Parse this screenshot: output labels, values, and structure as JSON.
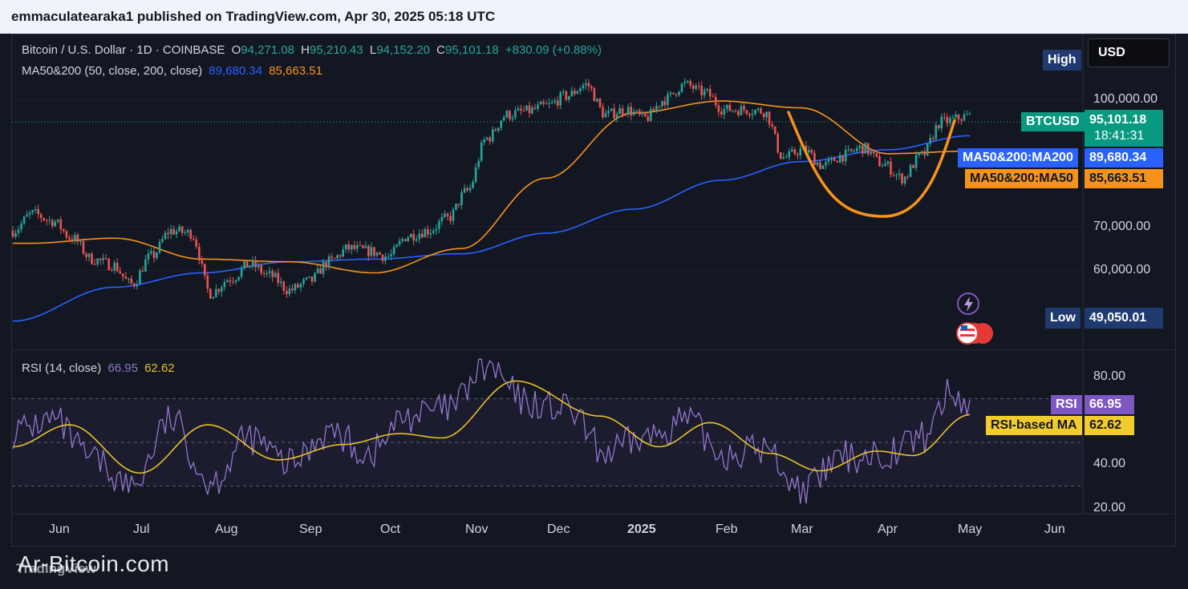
{
  "publisher": "emmaculatearaka1 published on TradingView.com, Apr 30, 2025 05:18 UTC",
  "symbol": {
    "name": "Bitcoin / U.S. Dollar · 1D · COINBASE",
    "open_label": "O",
    "open": "94,271.08",
    "high_label": "H",
    "high": "95,210.43",
    "low_label": "L",
    "low": "94,152.20",
    "close_label": "C",
    "close": "95,101.18",
    "change": "+830.09 (+0.88%)"
  },
  "ma_legend": {
    "name": "MA50&200 (50, close, 200, close)",
    "ma200": "89,680.34",
    "ma50": "85,663.51"
  },
  "rsi_legend": {
    "name": "RSI (14, close)",
    "rsi": "66.95",
    "rsi_ma": "62.62"
  },
  "currency_button": "USD",
  "tags": {
    "high_label": "High",
    "low_label": "Low",
    "low_value": "49,050.01",
    "btcusd_label": "BTCUSD",
    "btcusd_value": "95,101.18",
    "countdown": "18:41:31",
    "ma200_label": "MA50&200:MA200",
    "ma200_value": "89,680.34",
    "ma50_label": "MA50&200:MA50",
    "ma50_value": "85,663.51",
    "rsi_label": "RSI",
    "rsi_value": "66.95",
    "rsi_ma_label": "RSI-based MA",
    "rsi_ma_value": "62.62"
  },
  "colors": {
    "background": "#131722",
    "up": "#26a69a",
    "down": "#ef5350",
    "ma200": "#2962ff",
    "ma50": "#f7931a",
    "rsi": "#9575cd",
    "rsi_ma": "#e6c229"
  },
  "watermark": "Ar-Bitcoin.com",
  "logo_text": "TradingView",
  "chart_data": [
    {
      "type": "candlestick",
      "title": "Bitcoin / U.S. Dollar · 1D · COINBASE",
      "price_axis_ticks": [
        "100,000.00",
        "70,000.00",
        "60,000.00"
      ],
      "time_axis_ticks": [
        "Jun",
        "Jul",
        "Aug",
        "Sep",
        "Oct",
        "Nov",
        "Dec",
        "2025",
        "Feb",
        "Mar",
        "Apr",
        "May",
        "Jun"
      ],
      "log_scale": true,
      "ylim": [
        49050,
        110000
      ],
      "series_close_weekly": [
        {
          "date": "2024-05-26",
          "close": 67500
        },
        {
          "date": "2024-06-02",
          "close": 71000
        },
        {
          "date": "2024-06-09",
          "close": 69500
        },
        {
          "date": "2024-06-16",
          "close": 66000
        },
        {
          "date": "2024-06-23",
          "close": 62000
        },
        {
          "date": "2024-06-30",
          "close": 61000
        },
        {
          "date": "2024-07-07",
          "close": 57500
        },
        {
          "date": "2024-07-14",
          "close": 62500
        },
        {
          "date": "2024-07-21",
          "close": 67500
        },
        {
          "date": "2024-07-28",
          "close": 67000
        },
        {
          "date": "2024-08-04",
          "close": 56000
        },
        {
          "date": "2024-08-11",
          "close": 58500
        },
        {
          "date": "2024-08-18",
          "close": 61000
        },
        {
          "date": "2024-08-25",
          "close": 59000
        },
        {
          "date": "2024-09-01",
          "close": 56500
        },
        {
          "date": "2024-09-08",
          "close": 58000
        },
        {
          "date": "2024-09-15",
          "close": 61500
        },
        {
          "date": "2024-09-22",
          "close": 64000
        },
        {
          "date": "2024-09-29",
          "close": 63500
        },
        {
          "date": "2024-10-06",
          "close": 62500
        },
        {
          "date": "2024-10-13",
          "close": 66500
        },
        {
          "date": "2024-10-20",
          "close": 67500
        },
        {
          "date": "2024-10-27",
          "close": 70000
        },
        {
          "date": "2024-11-03",
          "close": 76000
        },
        {
          "date": "2024-11-10",
          "close": 89000
        },
        {
          "date": "2024-11-17",
          "close": 95500
        },
        {
          "date": "2024-11-24",
          "close": 96500
        },
        {
          "date": "2024-12-01",
          "close": 98000
        },
        {
          "date": "2024-12-08",
          "close": 101000
        },
        {
          "date": "2024-12-15",
          "close": 104500
        },
        {
          "date": "2024-12-22",
          "close": 95500
        },
        {
          "date": "2024-12-29",
          "close": 97000
        },
        {
          "date": "2025-01-05",
          "close": 94500
        },
        {
          "date": "2025-01-12",
          "close": 100000
        },
        {
          "date": "2025-01-19",
          "close": 104500
        },
        {
          "date": "2025-01-26",
          "close": 102000
        },
        {
          "date": "2025-02-02",
          "close": 97000
        },
        {
          "date": "2025-02-09",
          "close": 97000
        },
        {
          "date": "2025-02-16",
          "close": 96500
        },
        {
          "date": "2025-02-23",
          "close": 84000
        },
        {
          "date": "2025-03-02",
          "close": 86000
        },
        {
          "date": "2025-03-09",
          "close": 82000
        },
        {
          "date": "2025-03-16",
          "close": 84500
        },
        {
          "date": "2025-03-23",
          "close": 86500
        },
        {
          "date": "2025-03-30",
          "close": 82500
        },
        {
          "date": "2025-04-06",
          "close": 79000
        },
        {
          "date": "2025-04-13",
          "close": 84500
        },
        {
          "date": "2025-04-20",
          "close": 93500
        },
        {
          "date": "2025-04-30",
          "close": 95101.18
        }
      ],
      "ma50": [
        {
          "date": "2024-06-01",
          "value": 65000
        },
        {
          "date": "2024-07-01",
          "value": 66000
        },
        {
          "date": "2024-08-01",
          "value": 62000
        },
        {
          "date": "2024-09-01",
          "value": 61500
        },
        {
          "date": "2024-10-01",
          "value": 59500
        },
        {
          "date": "2024-11-01",
          "value": 64000
        },
        {
          "date": "2024-12-01",
          "value": 79000
        },
        {
          "date": "2025-01-01",
          "value": 96000
        },
        {
          "date": "2025-02-01",
          "value": 99500
        },
        {
          "date": "2025-03-01",
          "value": 97500
        },
        {
          "date": "2025-04-01",
          "value": 85000
        },
        {
          "date": "2025-04-30",
          "value": 85663.51
        }
      ],
      "ma200": [
        {
          "date": "2024-05-26",
          "value": 51500
        },
        {
          "date": "2024-07-01",
          "value": 57000
        },
        {
          "date": "2024-08-01",
          "value": 59500
        },
        {
          "date": "2024-09-01",
          "value": 61500
        },
        {
          "date": "2024-10-01",
          "value": 62000
        },
        {
          "date": "2024-11-01",
          "value": 63000
        },
        {
          "date": "2024-12-01",
          "value": 67000
        },
        {
          "date": "2025-01-01",
          "value": 72000
        },
        {
          "date": "2025-02-01",
          "value": 78500
        },
        {
          "date": "2025-03-01",
          "value": 83000
        },
        {
          "date": "2025-04-01",
          "value": 86000
        },
        {
          "date": "2025-04-30",
          "value": 89680.34
        }
      ],
      "annotation_curve": "cup pattern drawn from late Feb 2025 (~98,000) down to ~72,000 in early April and back up to ~93,000 in late April"
    },
    {
      "type": "line",
      "title": "RSI (14, close)",
      "ticks": [
        "80.00",
        "40.00",
        "20.00"
      ],
      "ylim": [
        15,
        90
      ],
      "bands": [
        30,
        50,
        70
      ],
      "rsi": [
        {
          "date": "2024-05-26",
          "value": 55
        },
        {
          "date": "2024-06-09",
          "value": 60
        },
        {
          "date": "2024-06-23",
          "value": 42
        },
        {
          "date": "2024-07-07",
          "value": 30
        },
        {
          "date": "2024-07-21",
          "value": 60
        },
        {
          "date": "2024-08-04",
          "value": 32
        },
        {
          "date": "2024-08-18",
          "value": 52
        },
        {
          "date": "2024-09-01",
          "value": 40
        },
        {
          "date": "2024-09-15",
          "value": 55
        },
        {
          "date": "2024-09-29",
          "value": 45
        },
        {
          "date": "2024-10-13",
          "value": 62
        },
        {
          "date": "2024-10-27",
          "value": 65
        },
        {
          "date": "2024-11-10",
          "value": 84
        },
        {
          "date": "2024-11-24",
          "value": 68
        },
        {
          "date": "2024-12-08",
          "value": 65
        },
        {
          "date": "2024-12-22",
          "value": 45
        },
        {
          "date": "2025-01-05",
          "value": 52
        },
        {
          "date": "2025-01-19",
          "value": 60
        },
        {
          "date": "2025-02-02",
          "value": 45
        },
        {
          "date": "2025-02-16",
          "value": 47
        },
        {
          "date": "2025-03-02",
          "value": 28
        },
        {
          "date": "2025-03-16",
          "value": 43
        },
        {
          "date": "2025-03-30",
          "value": 45
        },
        {
          "date": "2025-04-13",
          "value": 52
        },
        {
          "date": "2025-04-23",
          "value": 72
        },
        {
          "date": "2025-04-30",
          "value": 66.95
        }
      ],
      "rsi_ma": [
        {
          "date": "2024-05-26",
          "value": 48
        },
        {
          "date": "2024-06-15",
          "value": 58
        },
        {
          "date": "2024-07-10",
          "value": 36
        },
        {
          "date": "2024-08-03",
          "value": 58
        },
        {
          "date": "2024-08-28",
          "value": 42
        },
        {
          "date": "2024-09-20",
          "value": 49
        },
        {
          "date": "2024-10-10",
          "value": 54
        },
        {
          "date": "2024-10-25",
          "value": 52
        },
        {
          "date": "2024-11-20",
          "value": 78
        },
        {
          "date": "2024-12-20",
          "value": 62
        },
        {
          "date": "2025-01-10",
          "value": 48
        },
        {
          "date": "2025-01-28",
          "value": 59
        },
        {
          "date": "2025-02-18",
          "value": 45
        },
        {
          "date": "2025-03-08",
          "value": 37
        },
        {
          "date": "2025-03-28",
          "value": 46
        },
        {
          "date": "2025-04-10",
          "value": 44
        },
        {
          "date": "2025-04-30",
          "value": 62.62
        }
      ]
    }
  ]
}
